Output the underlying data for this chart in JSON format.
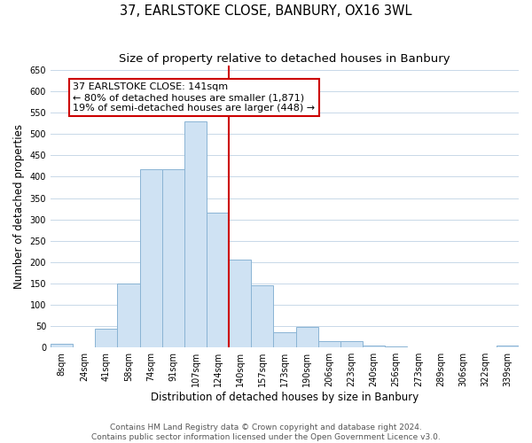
{
  "title": "37, EARLSTOKE CLOSE, BANBURY, OX16 3WL",
  "subtitle": "Size of property relative to detached houses in Banbury",
  "xlabel": "Distribution of detached houses by size in Banbury",
  "ylabel": "Number of detached properties",
  "bar_labels": [
    "8sqm",
    "24sqm",
    "41sqm",
    "58sqm",
    "74sqm",
    "91sqm",
    "107sqm",
    "124sqm",
    "140sqm",
    "157sqm",
    "173sqm",
    "190sqm",
    "206sqm",
    "223sqm",
    "240sqm",
    "256sqm",
    "273sqm",
    "289sqm",
    "306sqm",
    "322sqm",
    "339sqm"
  ],
  "bar_values": [
    8,
    0,
    45,
    150,
    418,
    418,
    530,
    315,
    205,
    145,
    35,
    48,
    15,
    14,
    5,
    3,
    0,
    0,
    0,
    0,
    5
  ],
  "bar_color": "#cfe2f3",
  "bar_edge_color": "#8ab4d4",
  "vline_index": 8,
  "vline_color": "#cc0000",
  "annotation_title": "37 EARLSTOKE CLOSE: 141sqm",
  "annotation_line1": "← 80% of detached houses are smaller (1,871)",
  "annotation_line2": "19% of semi-detached houses are larger (448) →",
  "annotation_box_facecolor": "#ffffff",
  "annotation_box_edgecolor": "#cc0000",
  "ylim": [
    0,
    660
  ],
  "yticks": [
    0,
    50,
    100,
    150,
    200,
    250,
    300,
    350,
    400,
    450,
    500,
    550,
    600,
    650
  ],
  "footer1": "Contains HM Land Registry data © Crown copyright and database right 2024.",
  "footer2": "Contains public sector information licensed under the Open Government Licence v3.0.",
  "bg_color": "#ffffff",
  "grid_color": "#c8d8e8",
  "title_fontsize": 10.5,
  "subtitle_fontsize": 9.5,
  "xlabel_fontsize": 8.5,
  "ylabel_fontsize": 8.5,
  "tick_fontsize": 7,
  "annotation_fontsize": 8,
  "footer_fontsize": 6.5
}
